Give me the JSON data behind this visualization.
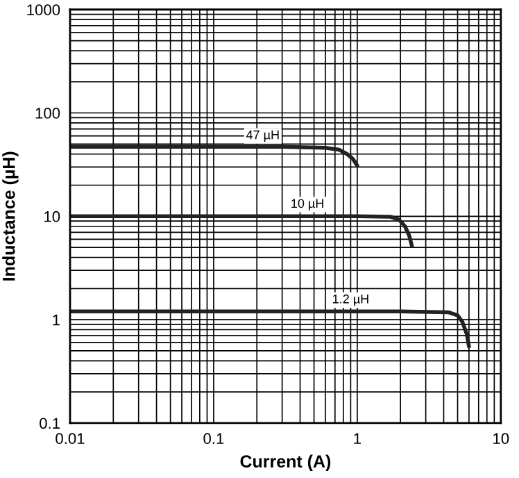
{
  "chart_data": {
    "type": "line",
    "xlabel": "Current (A)",
    "ylabel": "Inductance (µH)",
    "log": "xy",
    "xlim": [
      0.01,
      10
    ],
    "ylim": [
      0.1,
      1000
    ],
    "xticks": [
      {
        "value": 0.01,
        "label": "0.01"
      },
      {
        "value": 0.1,
        "label": "0.1"
      },
      {
        "value": 1,
        "label": "1"
      },
      {
        "value": 10,
        "label": "10"
      }
    ],
    "yticks": [
      {
        "value": 0.1,
        "label": "0.1"
      },
      {
        "value": 1,
        "label": "1"
      },
      {
        "value": 10,
        "label": "10"
      },
      {
        "value": 100,
        "label": "100"
      },
      {
        "value": 1000,
        "label": "1000"
      }
    ],
    "grid": true,
    "marker": "none",
    "line_style": "solid",
    "series": [
      {
        "color": "#222222",
        "x": [
          0.01,
          0.3,
          0.6,
          0.75,
          0.85,
          0.93,
          1.0
        ],
        "values": [
          47,
          47,
          46,
          44,
          40,
          36,
          31
        ]
      },
      {
        "color": "#222222",
        "x": [
          0.01,
          1.0,
          1.7,
          1.95,
          2.15,
          2.3,
          2.4
        ],
        "values": [
          10,
          10,
          9.9,
          9.3,
          8,
          6.5,
          5.2
        ]
      },
      {
        "color": "#222222",
        "x": [
          0.01,
          2.0,
          4.3,
          5.0,
          5.4,
          5.8,
          6.0
        ],
        "values": [
          1.2,
          1.2,
          1.18,
          1.1,
          0.95,
          0.72,
          0.55
        ]
      }
    ],
    "annotations": [
      {
        "text": "47 µH",
        "x": 0.22,
        "y": 60
      },
      {
        "text": "10 µH",
        "x": 0.45,
        "y": 13
      },
      {
        "text": "1.2 µH",
        "x": 0.9,
        "y": 1.55
      }
    ]
  }
}
